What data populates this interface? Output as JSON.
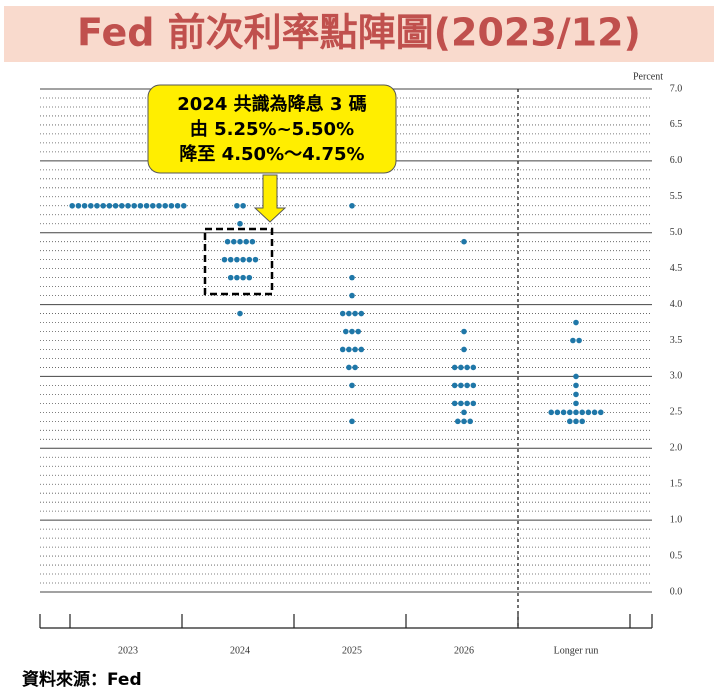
{
  "chart_data": {
    "type": "dot-plot",
    "title": "Fed 前次利率點陣圖(2023/12)",
    "y_label": "Percent",
    "categories": [
      "2023",
      "2024",
      "2025",
      "2026",
      "Longer run"
    ],
    "color": "#1f77a8",
    "dots": [
      [
        5.375,
        5.375,
        5.375,
        5.375,
        5.375,
        5.375,
        5.375,
        5.375,
        5.375,
        5.375,
        5.375,
        5.375,
        5.375,
        5.375,
        5.375,
        5.375,
        5.375,
        5.375,
        5.375
      ],
      [
        5.375,
        5.375,
        5.125,
        4.875,
        4.875,
        4.875,
        4.875,
        4.875,
        4.625,
        4.625,
        4.625,
        4.625,
        4.625,
        4.625,
        4.375,
        4.375,
        4.375,
        4.375,
        3.875
      ],
      [
        5.375,
        4.375,
        4.125,
        3.875,
        3.875,
        3.875,
        3.875,
        3.625,
        3.625,
        3.625,
        3.375,
        3.375,
        3.375,
        3.375,
        3.125,
        3.125,
        2.875,
        2.375
      ],
      [
        4.875,
        3.625,
        3.375,
        3.125,
        3.125,
        3.125,
        3.125,
        2.875,
        2.875,
        2.875,
        2.875,
        2.625,
        2.625,
        2.625,
        2.625,
        2.5,
        2.375,
        2.375,
        2.375
      ],
      [
        3.75,
        3.5,
        3.5,
        3.0,
        2.875,
        2.75,
        2.625,
        2.5,
        2.5,
        2.5,
        2.5,
        2.5,
        2.5,
        2.5,
        2.5,
        2.5,
        2.375,
        2.375,
        2.375
      ]
    ],
    "ylim": [
      0,
      7
    ],
    "yticks": [
      {
        "value": 0,
        "label": "0.0"
      },
      {
        "value": 0.5,
        "label": "0.5"
      },
      {
        "value": 1,
        "label": "1.0"
      },
      {
        "value": 1.5,
        "label": "1.5"
      },
      {
        "value": 2,
        "label": "2.0"
      },
      {
        "value": 2.5,
        "label": "2.5"
      },
      {
        "value": 3,
        "label": "3.0"
      },
      {
        "value": 3.5,
        "label": "3.5"
      },
      {
        "value": 4,
        "label": "4.0"
      },
      {
        "value": 4.5,
        "label": "4.5"
      },
      {
        "value": 5,
        "label": "5.0"
      },
      {
        "value": 5.5,
        "label": "5.5"
      },
      {
        "value": 6,
        "label": "6.0"
      },
      {
        "value": 6.5,
        "label": "6.5"
      },
      {
        "value": 7,
        "label": "7.0"
      }
    ],
    "grid": true,
    "annotation": [
      "2024 共識為降息 3 碼",
      "由 5.25%~5.50%",
      "降至 4.50%～4.75%"
    ],
    "source": "資料來源：Fed"
  }
}
